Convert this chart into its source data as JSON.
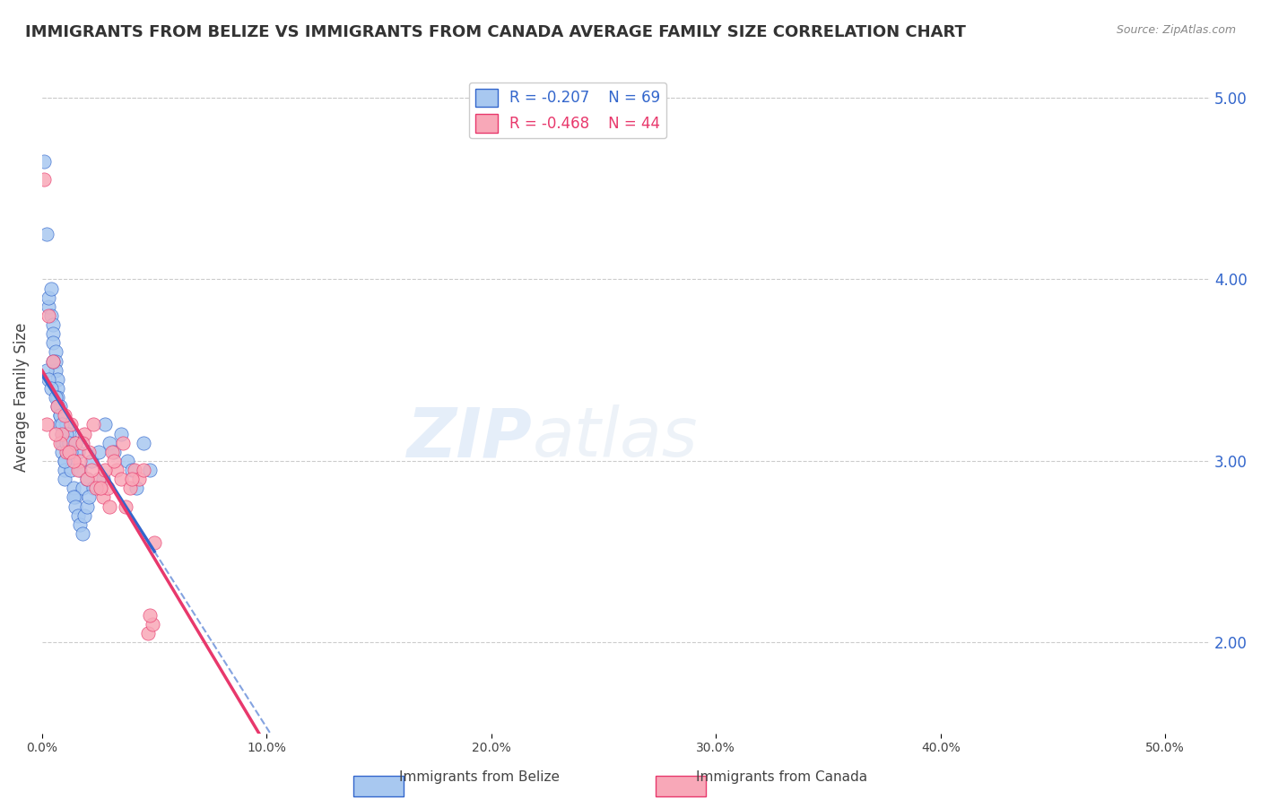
{
  "title": "IMMIGRANTS FROM BELIZE VS IMMIGRANTS FROM CANADA AVERAGE FAMILY SIZE CORRELATION CHART",
  "source": "Source: ZipAtlas.com",
  "ylabel": "Average Family Size",
  "right_yticks": [
    2.0,
    3.0,
    4.0,
    5.0
  ],
  "belize_R": -0.207,
  "belize_N": 69,
  "canada_R": -0.468,
  "canada_N": 44,
  "belize_color": "#a8c8f0",
  "belize_line_color": "#3366cc",
  "canada_color": "#f8a8b8",
  "canada_line_color": "#e8386c",
  "belize_scatter": {
    "x": [
      0.001,
      0.002,
      0.003,
      0.003,
      0.004,
      0.004,
      0.005,
      0.005,
      0.005,
      0.006,
      0.006,
      0.006,
      0.007,
      0.007,
      0.007,
      0.008,
      0.008,
      0.008,
      0.009,
      0.009,
      0.009,
      0.01,
      0.01,
      0.01,
      0.011,
      0.011,
      0.012,
      0.012,
      0.013,
      0.014,
      0.015,
      0.015,
      0.016,
      0.017,
      0.018,
      0.02,
      0.022,
      0.023,
      0.025,
      0.027,
      0.028,
      0.03,
      0.032,
      0.035,
      0.038,
      0.04,
      0.042,
      0.045,
      0.048,
      0.002,
      0.003,
      0.004,
      0.005,
      0.006,
      0.007,
      0.008,
      0.009,
      0.01,
      0.011,
      0.012,
      0.013,
      0.014,
      0.015,
      0.016,
      0.017,
      0.018,
      0.019,
      0.02,
      0.021
    ],
    "y": [
      4.65,
      4.25,
      3.85,
      3.9,
      3.95,
      3.8,
      3.75,
      3.7,
      3.65,
      3.6,
      3.55,
      3.5,
      3.45,
      3.4,
      3.35,
      3.3,
      3.25,
      3.2,
      3.15,
      3.1,
      3.05,
      3.0,
      2.95,
      2.9,
      3.1,
      3.2,
      3.15,
      3.05,
      2.95,
      2.85,
      2.8,
      3.1,
      3.05,
      2.95,
      2.85,
      2.9,
      3.0,
      2.85,
      3.05,
      2.9,
      3.2,
      3.1,
      3.05,
      3.15,
      3.0,
      2.95,
      2.85,
      3.1,
      2.95,
      3.5,
      3.45,
      3.4,
      3.55,
      3.35,
      3.3,
      3.25,
      3.2,
      3.0,
      3.15,
      3.1,
      3.05,
      2.8,
      2.75,
      2.7,
      2.65,
      2.6,
      2.7,
      2.75,
      2.8
    ]
  },
  "canada_scatter": {
    "x": [
      0.001,
      0.003,
      0.005,
      0.007,
      0.009,
      0.011,
      0.013,
      0.015,
      0.017,
      0.019,
      0.021,
      0.023,
      0.025,
      0.027,
      0.029,
      0.031,
      0.033,
      0.035,
      0.037,
      0.039,
      0.041,
      0.043,
      0.045,
      0.047,
      0.049,
      0.008,
      0.012,
      0.016,
      0.02,
      0.024,
      0.028,
      0.032,
      0.036,
      0.04,
      0.002,
      0.006,
      0.01,
      0.014,
      0.018,
      0.022,
      0.026,
      0.03,
      0.048,
      0.05
    ],
    "y": [
      4.55,
      3.8,
      3.55,
      3.3,
      3.15,
      3.05,
      3.2,
      3.1,
      3.0,
      3.15,
      3.05,
      3.2,
      2.9,
      2.8,
      2.85,
      3.05,
      2.95,
      2.9,
      2.75,
      2.85,
      2.95,
      2.9,
      2.95,
      2.05,
      2.1,
      3.1,
      3.05,
      2.95,
      2.9,
      2.85,
      2.95,
      3.0,
      3.1,
      2.9,
      3.2,
      3.15,
      3.25,
      3.0,
      3.1,
      2.95,
      2.85,
      2.75,
      2.15,
      2.55
    ]
  }
}
